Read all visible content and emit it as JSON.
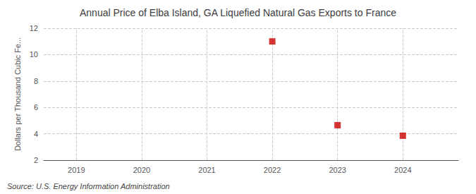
{
  "chart_data": {
    "type": "scatter",
    "title": "Annual Price of Elba Island, GA Liquefied Natural Gas Exports to France",
    "ylabel": "Dollars per Thousand Cubic Fe...",
    "annotations": [
      "Source: U.S. Energy Information Administration"
    ],
    "x": [
      2022,
      2023,
      2024
    ],
    "values": [
      11.0,
      4.65,
      3.85
    ],
    "color": "#cc0000",
    "marker": "square",
    "xlim": [
      2018.5,
      2024.85
    ],
    "xticks": [
      2019,
      2020,
      2021,
      2022,
      2023,
      2024
    ],
    "ylim": [
      2,
      12
    ],
    "yticks": [
      2,
      4,
      6,
      8,
      10,
      12
    ],
    "grid": true
  }
}
